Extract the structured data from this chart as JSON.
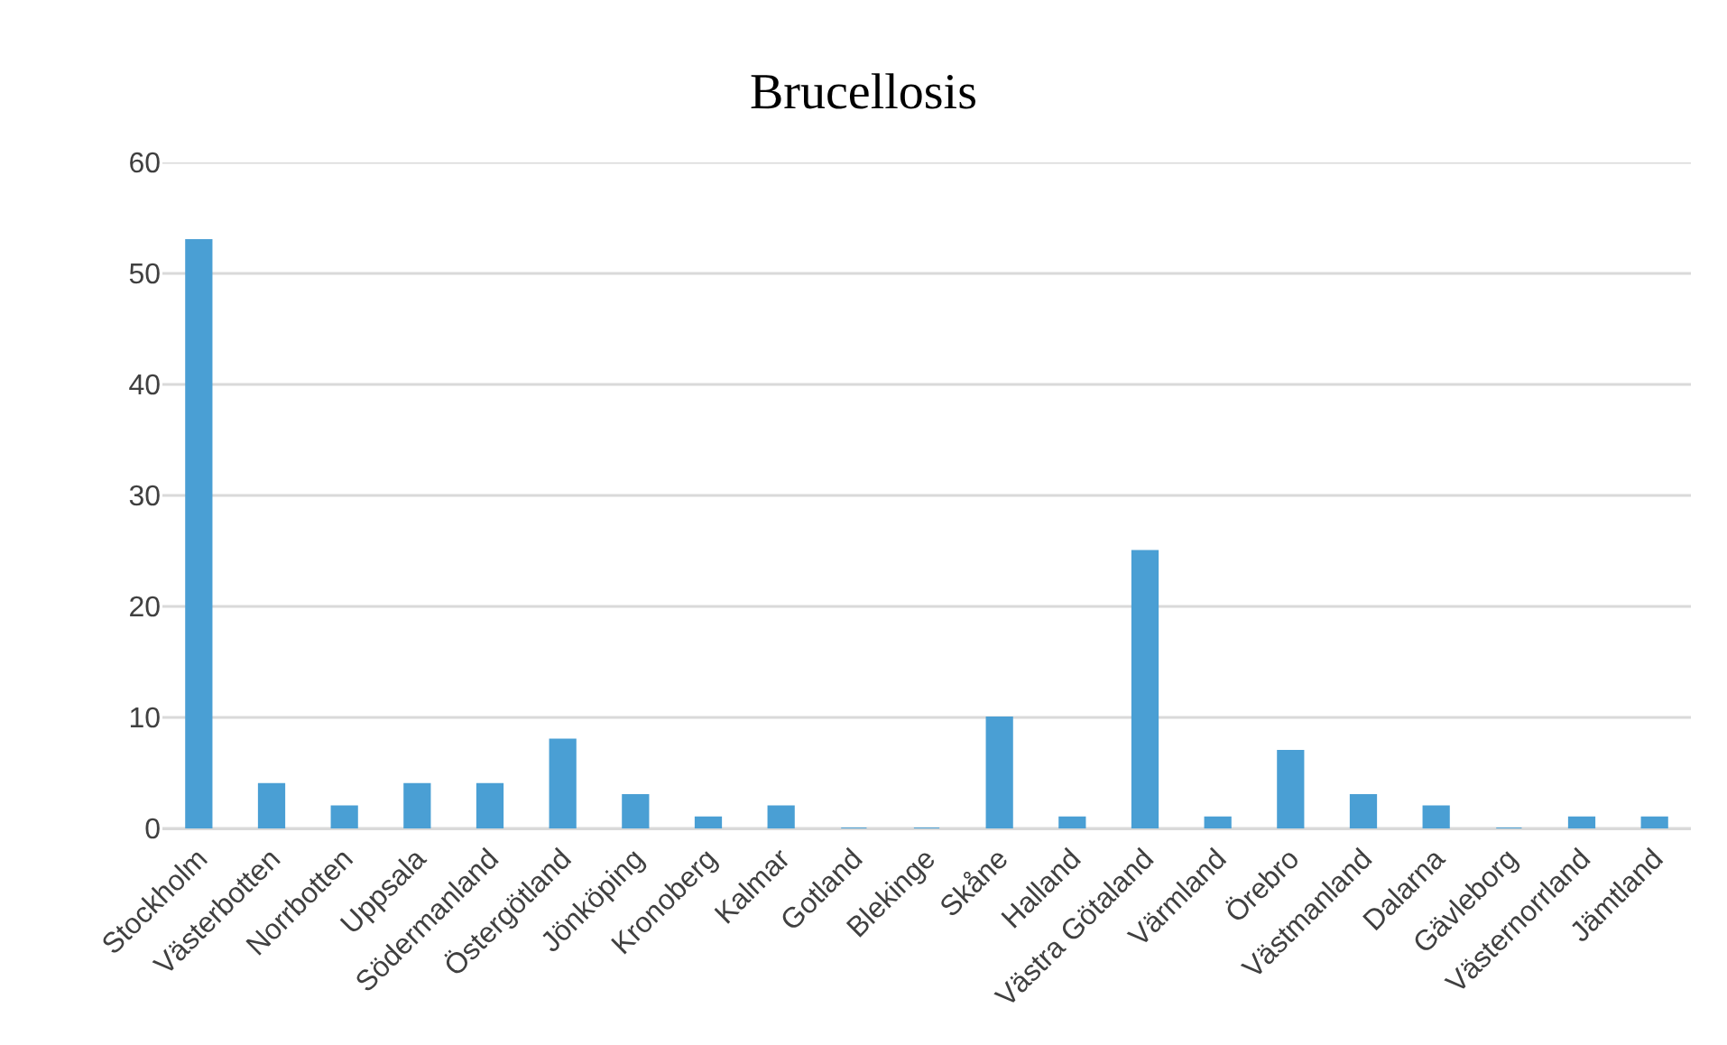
{
  "chart_data": {
    "type": "bar",
    "title": "Brucellosis",
    "categories": [
      "Stockholm",
      "Västerbotten",
      "Norrbotten",
      "Uppsala",
      "Södermanland",
      "Östergötland",
      "Jönköping",
      "Kronoberg",
      "Kalmar",
      "Gotland",
      "Blekinge",
      "Skåne",
      "Halland",
      "Västra Götaland",
      "Värmland",
      "Örebro",
      "Västmanland",
      "Dalarna",
      "Gävleborg",
      "Västernorrland",
      "Jämtland"
    ],
    "values": [
      53,
      4,
      2,
      4,
      4,
      8,
      3,
      1,
      2,
      0,
      0,
      10,
      1,
      25,
      1,
      7,
      3,
      2,
      0,
      1,
      1
    ],
    "color": "#4a9fd4",
    "ylim": [
      0,
      60
    ],
    "yticks": [
      0,
      10,
      20,
      30,
      40,
      50,
      60
    ],
    "grid": "y"
  }
}
